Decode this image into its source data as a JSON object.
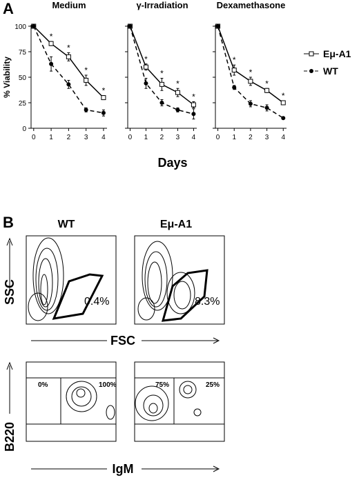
{
  "panel_labels": [
    "A",
    "B"
  ],
  "chart_data": [
    {
      "type": "line",
      "title": "Medium",
      "ylabel": "% Viability",
      "x": [
        0,
        1,
        2,
        3,
        4
      ],
      "xlim": [
        -0.15,
        4.2
      ],
      "xticks": [
        0,
        1,
        2,
        3,
        4
      ],
      "ylim": [
        0,
        100
      ],
      "yticks": [
        0,
        25,
        50,
        75,
        100
      ],
      "series": [
        {
          "name": "Eμ-A1",
          "color": "#000000",
          "marker": "square",
          "dash": false,
          "values": [
            100,
            83,
            70,
            47,
            30
          ],
          "errors": [
            0,
            2,
            4,
            5,
            2
          ]
        },
        {
          "name": "WT",
          "color": "#000000",
          "marker": "circle",
          "dash": true,
          "values": [
            100,
            63,
            43,
            18,
            15
          ],
          "errors": [
            0,
            7,
            4,
            2,
            3
          ]
        }
      ],
      "annotations": [
        {
          "x": 1,
          "text": "*"
        },
        {
          "x": 2,
          "text": "*"
        },
        {
          "x": 3,
          "text": "*"
        },
        {
          "x": 4,
          "text": "*"
        }
      ]
    },
    {
      "type": "line",
      "title": "γ-Irradiation",
      "xlabel": "Days",
      "x": [
        0,
        1,
        2,
        3,
        4
      ],
      "xlim": [
        -0.15,
        4.2
      ],
      "xticks": [
        0,
        1,
        2,
        3,
        4
      ],
      "ylim": [
        0,
        100
      ],
      "yticks": [
        0,
        25,
        50,
        75,
        100
      ],
      "series": [
        {
          "color": "#000000",
          "marker": "square",
          "dash": false,
          "values": [
            100,
            60,
            43,
            35,
            23
          ],
          "errors": [
            0,
            3,
            6,
            4,
            3
          ]
        },
        {
          "color": "#000000",
          "marker": "circle",
          "dash": true,
          "values": [
            100,
            44,
            25,
            18,
            14
          ],
          "errors": [
            0,
            5,
            3,
            2,
            5
          ]
        }
      ],
      "annotations": [
        {
          "x": 1,
          "text": "*"
        },
        {
          "x": 2,
          "text": "*"
        },
        {
          "x": 3,
          "text": "*"
        },
        {
          "x": 4,
          "text": "*"
        }
      ]
    },
    {
      "type": "line",
      "title": "Dexamethasone",
      "x": [
        0,
        1,
        2,
        3,
        4
      ],
      "xlim": [
        -0.15,
        4.2
      ],
      "xticks": [
        0,
        1,
        2,
        3,
        4
      ],
      "ylim": [
        0,
        100
      ],
      "yticks": [
        0,
        25,
        50,
        75,
        100
      ],
      "series": [
        {
          "color": "#000000",
          "marker": "square",
          "dash": false,
          "values": [
            100,
            57,
            46,
            37,
            25
          ],
          "errors": [
            0,
            5,
            4,
            2,
            2
          ]
        },
        {
          "color": "#000000",
          "marker": "circle",
          "dash": true,
          "values": [
            100,
            40,
            24,
            20,
            10
          ],
          "errors": [
            0,
            2,
            3,
            3,
            1
          ]
        }
      ],
      "annotations": [
        {
          "x": 1,
          "text": "*"
        },
        {
          "x": 2,
          "text": "*"
        },
        {
          "x": 3,
          "text": "*"
        },
        {
          "x": 4,
          "text": "*"
        }
      ]
    }
  ],
  "flow": {
    "columns": [
      "WT",
      "Eμ-A1"
    ],
    "scatter": {
      "ylabel": "SSC",
      "xlabel": "FSC",
      "gates": [
        "0.4%",
        "8.3%"
      ]
    },
    "surface": {
      "ylabel": "B220",
      "xlabel": "IgM",
      "gates": [
        [
          "0%",
          "100%"
        ],
        [
          "75%",
          "25%"
        ]
      ]
    }
  }
}
